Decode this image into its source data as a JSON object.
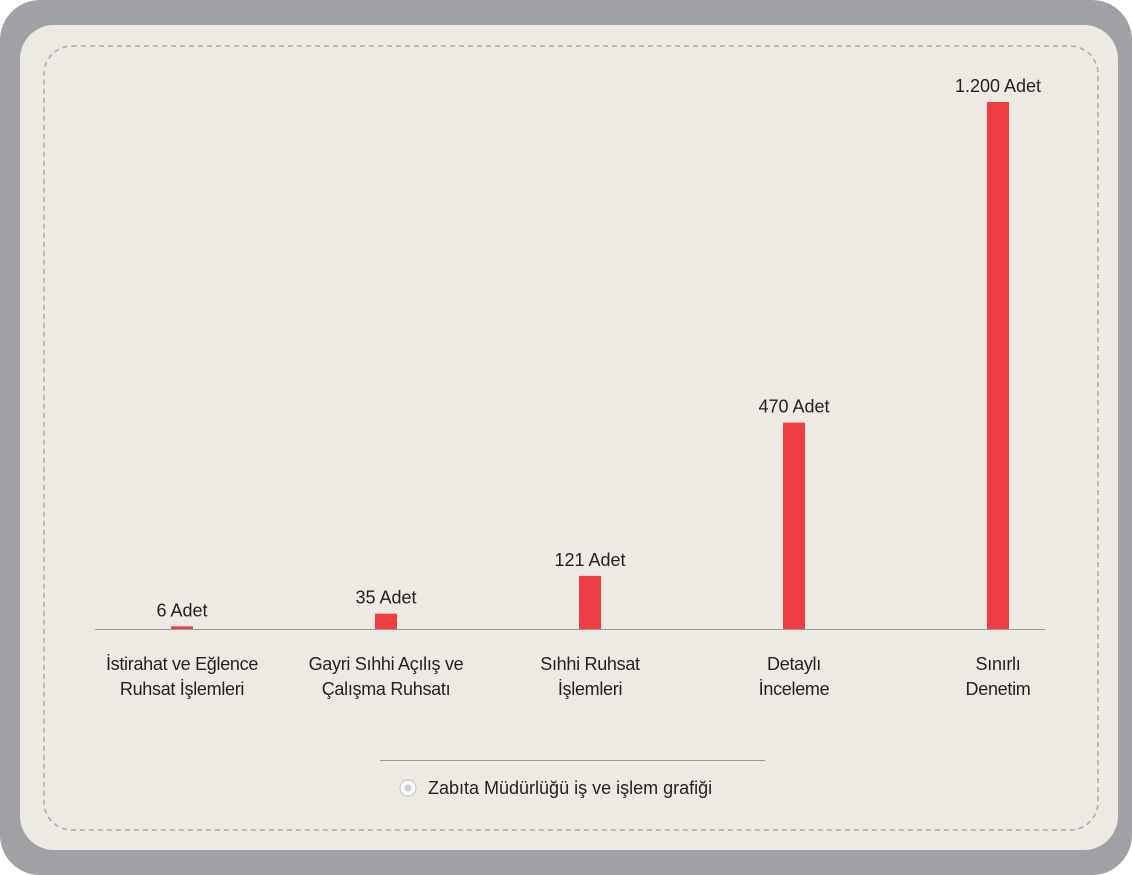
{
  "chart_data": {
    "type": "bar",
    "categories": [
      "İstirahat ve Eğlence\nRuhsat İşlemleri",
      "Gayri Sıhhi Açılış ve\nÇalışma Ruhsatı",
      "Sıhhi Ruhsat\nİşlemleri",
      "Detaylı\nİnceleme",
      "Sınırlı\nDenetim"
    ],
    "values": [
      6,
      35,
      121,
      470,
      1200
    ],
    "value_labels": [
      "6 Adet",
      "35 Adet",
      "121 Adet",
      "470 Adet",
      "1.200 Adet"
    ],
    "color": "#ef3e42",
    "ylim": [
      0,
      1200
    ],
    "legend": "Zabıta Müdürlüğü iş ve işlem grafiği"
  }
}
